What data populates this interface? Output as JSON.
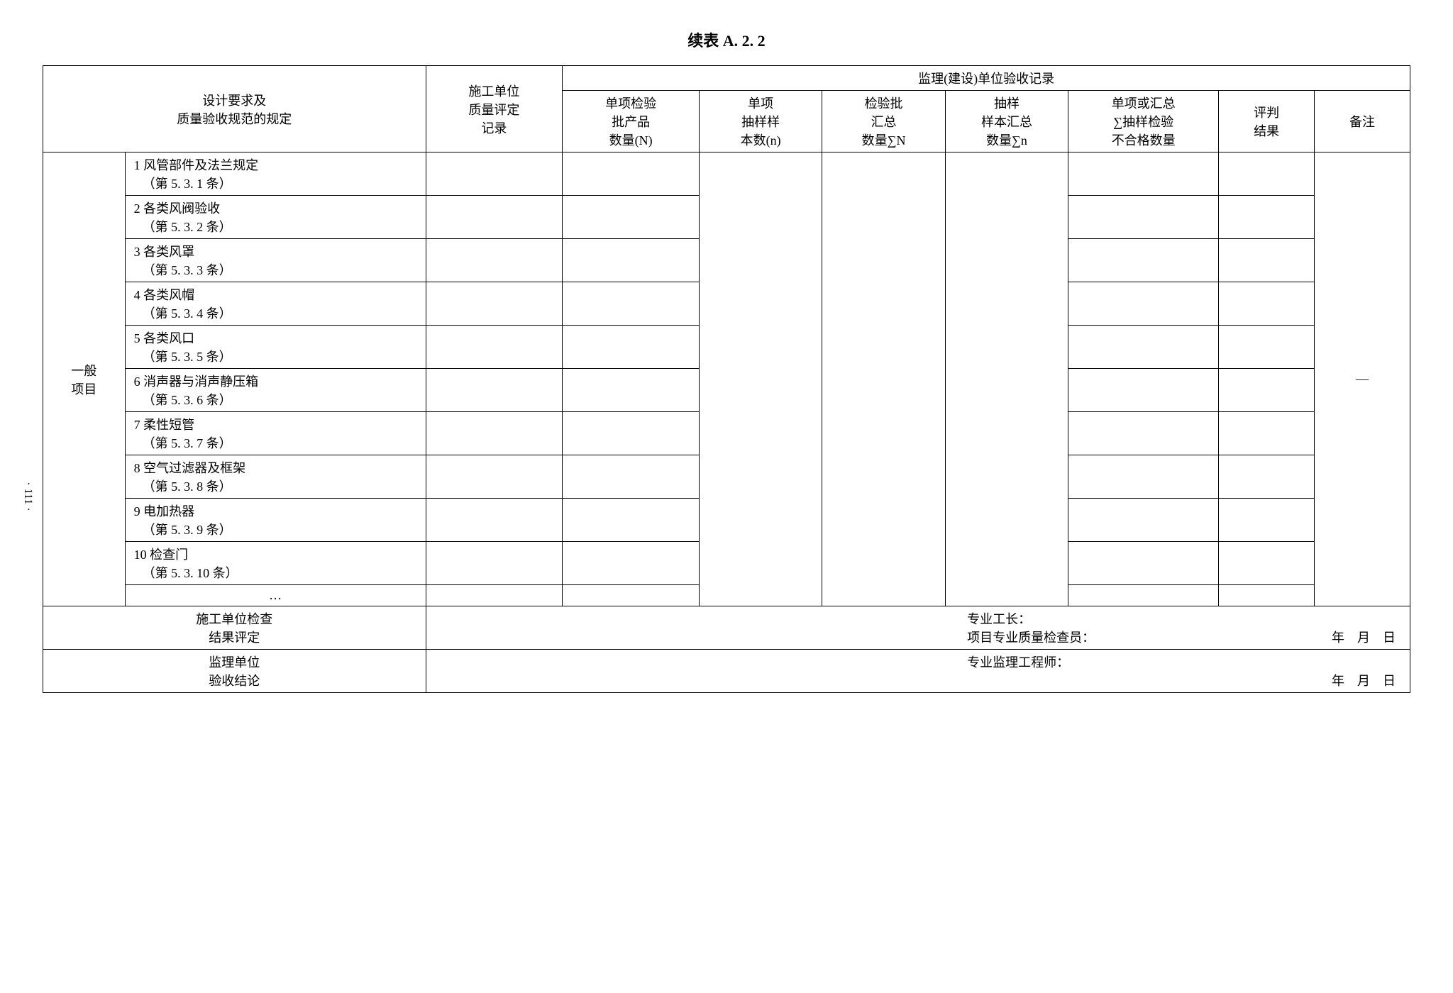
{
  "title": "续表 A. 2. 2",
  "page_number": "· 111 ·",
  "headers": {
    "design_req": "设计要求及\n质量验收规范的规定",
    "construct_record": "施工单位\n质量评定\n记录",
    "supervision_record": "监理(建设)单位验收记录",
    "single_check_qty": "单项检验\n批产品\n数量(N)",
    "single_sample": "单项\n抽样样\n本数(n)",
    "check_batch_sum": "检验批\n汇总\n数量∑N",
    "sample_sum": "抽样\n样本汇总\n数量∑n",
    "single_or_sum": "单项或汇总\n∑抽样检验\n不合格数量",
    "judge_result": "评判\n结果",
    "remark": "备注"
  },
  "side_label": "一般\n项目",
  "items": [
    {
      "name": "1 风管部件及法兰规定",
      "ref": "（第 5. 3. 1 条）"
    },
    {
      "name": "2 各类风阀验收",
      "ref": "（第 5. 3. 2 条）"
    },
    {
      "name": "3 各类风罩",
      "ref": "（第 5. 3. 3 条）"
    },
    {
      "name": "4 各类风帽",
      "ref": "（第 5. 3. 4 条）"
    },
    {
      "name": "5 各类风口",
      "ref": "（第 5. 3. 5 条）"
    },
    {
      "name": "6 消声器与消声静压箱",
      "ref": "（第 5. 3. 6 条）"
    },
    {
      "name": "7 柔性短管",
      "ref": "（第 5. 3. 7 条）"
    },
    {
      "name": "8 空气过滤器及框架",
      "ref": "（第 5. 3. 8 条）"
    },
    {
      "name": "9 电加热器",
      "ref": "（第 5. 3. 9 条）"
    },
    {
      "name": "10 检查门",
      "ref": "（第 5. 3. 10 条）"
    }
  ],
  "ellipsis": "…",
  "remark_dash": "—",
  "footer": {
    "construct_check_label": "施工单位检查\n结果评定",
    "foreman": "专业工长：",
    "quality_inspector": "项目专业质量检查员：",
    "supervision_label": "监理单位\n验收结论",
    "supervision_engineer": "专业监理工程师：",
    "date": "年　月　日"
  }
}
